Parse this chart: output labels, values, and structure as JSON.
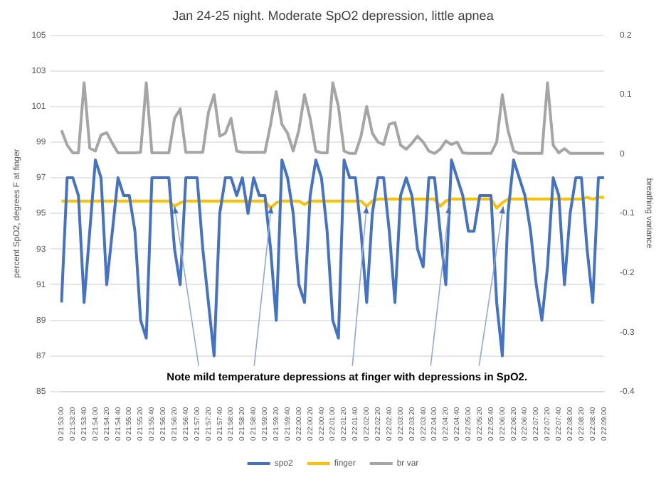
{
  "chart_data": {
    "type": "line",
    "title": "Jan 24-25 night. Moderate SpO2 depression, little apnea",
    "ylabel": "percent SpO2, degrees F at finger",
    "y2label": "breathing variance",
    "categories": [
      "0 21:53:00",
      null,
      "0 21:53:20",
      null,
      "0 21:53:40",
      null,
      "0 21:54:00",
      null,
      "0 21:54:20",
      null,
      "0 21:54:40",
      null,
      "0 21:55:00",
      null,
      "0 21:55:20",
      null,
      "0 21:55:40",
      null,
      "0 21:56:00",
      null,
      "0 21:56:20",
      null,
      "0 21:56:40",
      null,
      "0 21:57:00",
      null,
      "0 21:57:20",
      null,
      "0 21:57:40",
      null,
      "0 21:58:00",
      null,
      "0 21:58:20",
      null,
      "0 21:58:40",
      null,
      "0 21:59:00",
      null,
      "0 21:59:20",
      null,
      "0 21:59:40",
      null,
      "0 22:00:00",
      null,
      "0 22:00:20",
      null,
      "0 22:00:40",
      null,
      "0 22:01:00",
      null,
      "0 22:01:20",
      null,
      "0 22:01:40",
      null,
      "0 22:02:00",
      null,
      "0 22:02:20",
      null,
      "0 22:02:40",
      null,
      "0 22:03:00",
      null,
      "0 22:03:20",
      null,
      "0 22:03:40",
      null,
      "0 22:04:00",
      null,
      "0 22:04:20",
      null,
      "0 22:04:40",
      null,
      "0 22:05:00",
      null,
      "0 22:05:20",
      null,
      "0 22:05:40",
      null,
      "0 22:06:00",
      null,
      "0 22:06:20",
      null,
      "0 22:06:40",
      null,
      "0 22:07:00",
      null,
      "0 22:07:20",
      null,
      "0 22:07:40",
      null,
      "0 22:08:00",
      null,
      "0 22:08:20",
      null,
      "0 22:08:40",
      null,
      "0 22:09:00"
    ],
    "series": [
      {
        "name": "spo2",
        "color": "#4472c4",
        "values": [
          90,
          97,
          97,
          96,
          90,
          94,
          98,
          97,
          91,
          94,
          97,
          96,
          96,
          94,
          89,
          88,
          97,
          97,
          97,
          97,
          93,
          91,
          97,
          97,
          97,
          93,
          90,
          87,
          95,
          97,
          97,
          96,
          97,
          95,
          97,
          96,
          96,
          93,
          89,
          98,
          97,
          95,
          91,
          90,
          96,
          98,
          97,
          94,
          89,
          88,
          98,
          97,
          97,
          94,
          90,
          95,
          97,
          97,
          94,
          90,
          96,
          97,
          96,
          93,
          92,
          97,
          97,
          94,
          91,
          98,
          97,
          96,
          94,
          94,
          96,
          96,
          96,
          90,
          87,
          95,
          98,
          97,
          96,
          94,
          91,
          89,
          92,
          97,
          96,
          91,
          95,
          97,
          97,
          93,
          90,
          97,
          97
        ]
      },
      {
        "name": "finger",
        "color": "#ffc000",
        "values": [
          95.7,
          95.7,
          95.7,
          95.7,
          95.7,
          95.7,
          95.7,
          95.7,
          95.7,
          95.7,
          95.7,
          95.7,
          95.7,
          95.7,
          95.7,
          95.7,
          95.7,
          95.7,
          95.7,
          95.7,
          95.4,
          95.6,
          95.7,
          95.7,
          95.7,
          95.7,
          95.7,
          95.7,
          95.7,
          95.7,
          95.7,
          95.7,
          95.7,
          95.7,
          95.7,
          95.7,
          95.7,
          95.3,
          95.6,
          95.7,
          95.7,
          95.7,
          95.7,
          95.5,
          95.7,
          95.7,
          95.7,
          95.7,
          95.7,
          95.7,
          95.7,
          95.7,
          95.7,
          95.7,
          95.4,
          95.7,
          95.8,
          95.8,
          95.8,
          95.8,
          95.8,
          95.8,
          95.8,
          95.8,
          95.8,
          95.8,
          95.8,
          95.4,
          95.7,
          95.8,
          95.8,
          95.8,
          95.8,
          95.8,
          95.8,
          95.8,
          95.8,
          95.3,
          95.6,
          95.8,
          95.8,
          95.8,
          95.8,
          95.8,
          95.8,
          95.8,
          95.8,
          95.8,
          95.8,
          95.8,
          95.8,
          95.8,
          95.8,
          95.9,
          95.8,
          95.9,
          95.9
        ]
      },
      {
        "name": "br var",
        "color": "#a5a5a5",
        "axis": "y2",
        "values": [
          0.04,
          0.015,
          0.002,
          0.002,
          0.12,
          0.01,
          0.005,
          0.032,
          0.036,
          0.018,
          0.002,
          0.002,
          0.002,
          0.002,
          0.003,
          0.12,
          0.002,
          0.002,
          0.002,
          0.002,
          0.06,
          0.076,
          0.003,
          0.003,
          0.003,
          0.003,
          0.07,
          0.1,
          0.03,
          0.035,
          0.06,
          0.005,
          0.003,
          0.003,
          0.003,
          0.003,
          0.003,
          0.05,
          0.105,
          0.05,
          0.035,
          0.005,
          0.04,
          0.1,
          0.06,
          0.005,
          0.002,
          0.002,
          0.12,
          0.08,
          0.005,
          0.001,
          0.001,
          0.03,
          0.08,
          0.035,
          0.02,
          0.016,
          0.05,
          0.053,
          0.015,
          0.008,
          0.018,
          0.03,
          0.02,
          0.005,
          0.001,
          0.008,
          0.022,
          0.016,
          0.02,
          0.002,
          0.001,
          0.001,
          0.001,
          0.001,
          0.001,
          0.02,
          0.1,
          0.04,
          0.005,
          0.001,
          0.001,
          0.001,
          0.001,
          0.001,
          0.12,
          0.015,
          0.002,
          0.009,
          0.001,
          0.001,
          0.001,
          0.001,
          0.001,
          0.001,
          0.001
        ]
      }
    ],
    "ylim": [
      85,
      105
    ],
    "yticks": [
      85,
      87,
      89,
      91,
      93,
      95,
      97,
      99,
      101,
      103,
      105
    ],
    "y2lim": [
      -0.4,
      0.2
    ],
    "y2ticks": [
      -0.4,
      -0.3,
      -0.2,
      -0.1,
      0,
      0.1,
      0.2
    ],
    "grid": "y",
    "legend": "bottom",
    "marker": "none",
    "line_style": "solid",
    "annotations": [
      {
        "text": "Note mild temperature depressions at finger with depressions in SpO2.",
        "x": "0 21:56:20",
        "y": 95.4
      }
    ]
  }
}
